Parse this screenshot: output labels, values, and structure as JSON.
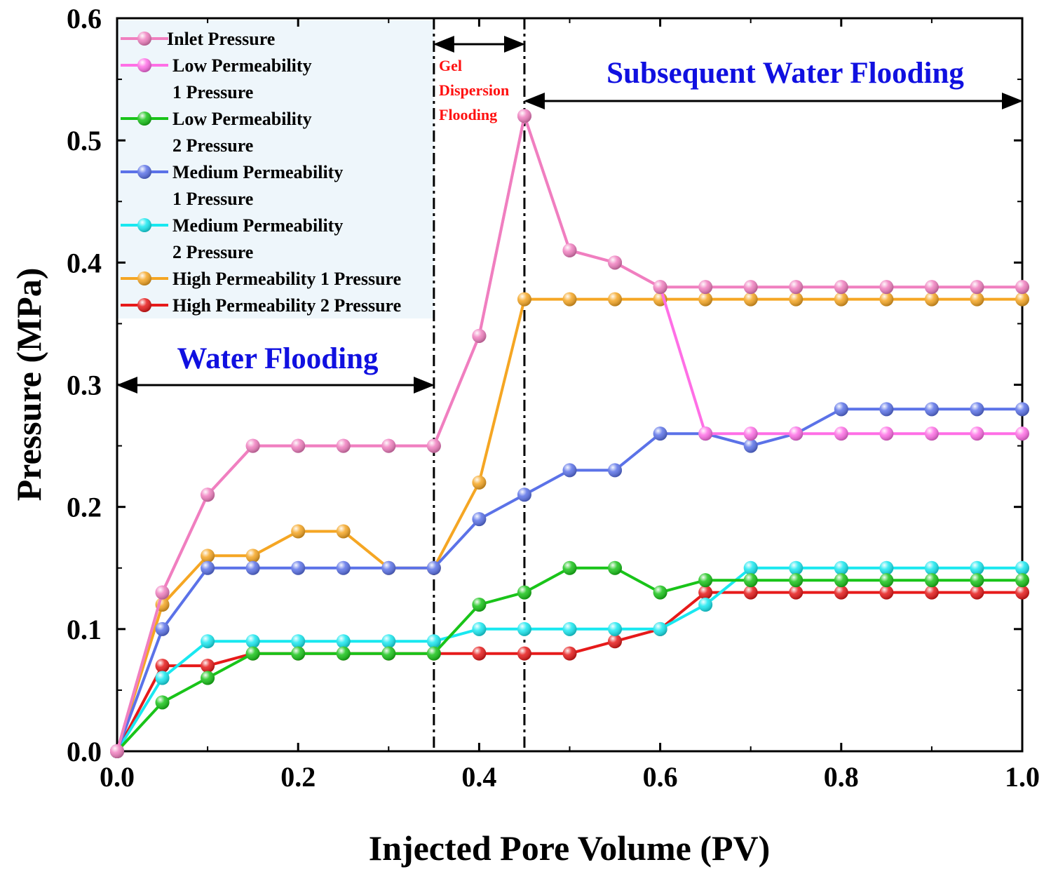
{
  "chart_data": {
    "type": "line",
    "title": "",
    "xlabel": "Injected Pore Volume (PV)",
    "ylabel": "Pressure (MPa)",
    "xlim": [
      0,
      1.0
    ],
    "ylim": [
      0,
      0.6
    ],
    "xticks": [
      0.0,
      0.2,
      0.4,
      0.6,
      0.8,
      1.0
    ],
    "xtick_labels": [
      "0.0",
      "0.2",
      "0.4",
      "0.6",
      "0.8",
      "1.0"
    ],
    "yticks": [
      0.0,
      0.1,
      0.2,
      0.3,
      0.4,
      0.5,
      0.6
    ],
    "ytick_labels": [
      "0.0",
      "0.1",
      "0.2",
      "0.3",
      "0.4",
      "0.5",
      "0.6"
    ],
    "grid": false,
    "legend_position": "top-left",
    "x": [
      0,
      0.05,
      0.1,
      0.15,
      0.2,
      0.25,
      0.3,
      0.35,
      0.4,
      0.45,
      0.5,
      0.55,
      0.6,
      0.65,
      0.7,
      0.75,
      0.8,
      0.85,
      0.9,
      0.95,
      1.0
    ],
    "series": [
      {
        "name": "Inlet Pressure",
        "legend_lines": [
          "Inlet Pressure"
        ],
        "color": "#f07fbf",
        "values": [
          0,
          0.13,
          0.21,
          0.25,
          0.25,
          0.25,
          0.25,
          0.25,
          0.34,
          0.52,
          0.41,
          0.4,
          0.38,
          0.38,
          0.38,
          0.38,
          0.38,
          0.38,
          0.38,
          0.38,
          0.38
        ]
      },
      {
        "name": "Low Permeability 1 Pressure",
        "legend_lines": [
          "Low Permeability",
          "1 Pressure"
        ],
        "color": "#ff6fe6",
        "values": [
          0,
          0.13,
          0.21,
          0.25,
          0.25,
          0.25,
          0.25,
          0.25,
          0.34,
          0.52,
          0.41,
          0.4,
          0.38,
          0.26,
          0.26,
          0.26,
          0.26,
          0.26,
          0.26,
          0.26,
          0.26
        ]
      },
      {
        "name": "Low Permeability 2 Pressure",
        "legend_lines": [
          "Low Permeability",
          "2 Pressure"
        ],
        "color": "#19c419",
        "values": [
          0,
          0.04,
          0.06,
          0.08,
          0.08,
          0.08,
          0.08,
          0.08,
          0.12,
          0.13,
          0.15,
          0.15,
          0.13,
          0.14,
          0.14,
          0.14,
          0.14,
          0.14,
          0.14,
          0.14,
          0.14
        ]
      },
      {
        "name": "Medium Permeability 1 Pressure",
        "legend_lines": [
          "Medium Permeability",
          "1 Pressure"
        ],
        "color": "#5b72e8",
        "values": [
          0,
          0.1,
          0.15,
          0.15,
          0.15,
          0.15,
          0.15,
          0.15,
          0.19,
          0.21,
          0.23,
          0.23,
          0.26,
          0.26,
          0.25,
          0.26,
          0.28,
          0.28,
          0.28,
          0.28,
          0.28
        ]
      },
      {
        "name": "Medium Permeability 2 Pressure",
        "legend_lines": [
          "Medium Permeability",
          "2 Pressure"
        ],
        "color": "#19e8f0",
        "values": [
          0,
          0.06,
          0.09,
          0.09,
          0.09,
          0.09,
          0.09,
          0.09,
          0.1,
          0.1,
          0.1,
          0.1,
          0.1,
          0.12,
          0.15,
          0.15,
          0.15,
          0.15,
          0.15,
          0.15,
          0.15
        ]
      },
      {
        "name": "High Permeability 1 Pressure",
        "legend_lines": [
          "High Permeability 1 Pressure"
        ],
        "color": "#f5a623",
        "values": [
          0,
          0.12,
          0.16,
          0.16,
          0.18,
          0.18,
          0.15,
          0.15,
          0.22,
          0.37,
          0.37,
          0.37,
          0.37,
          0.37,
          0.37,
          0.37,
          0.37,
          0.37,
          0.37,
          0.37,
          0.37
        ]
      },
      {
        "name": "High Permeability 2 Pressure",
        "legend_lines": [
          "High Permeability 2 Pressure"
        ],
        "color": "#e61a1a",
        "values": [
          0,
          0.07,
          0.07,
          0.08,
          0.08,
          0.08,
          0.08,
          0.08,
          0.08,
          0.08,
          0.08,
          0.09,
          0.1,
          0.13,
          0.13,
          0.13,
          0.13,
          0.13,
          0.13,
          0.13,
          0.13
        ]
      }
    ],
    "phase_boundaries": [
      0.35,
      0.45
    ],
    "annotations": [
      {
        "name": "water-flooding",
        "lines": [
          "Water Flooding"
        ],
        "color": "#1010e0",
        "arrow_from": 0,
        "arrow_to": 0.35
      },
      {
        "name": "gel-dispersion-flooding",
        "lines": [
          "Gel",
          "Dispersion",
          "Flooding"
        ],
        "color": "#ff1010",
        "arrow_from": 0.35,
        "arrow_to": 0.45
      },
      {
        "name": "subsequent-water-flooding",
        "lines": [
          "Subsequent Water Flooding"
        ],
        "color": "#1010e0",
        "arrow_from": 0.45,
        "arrow_to": 1.0
      }
    ]
  }
}
